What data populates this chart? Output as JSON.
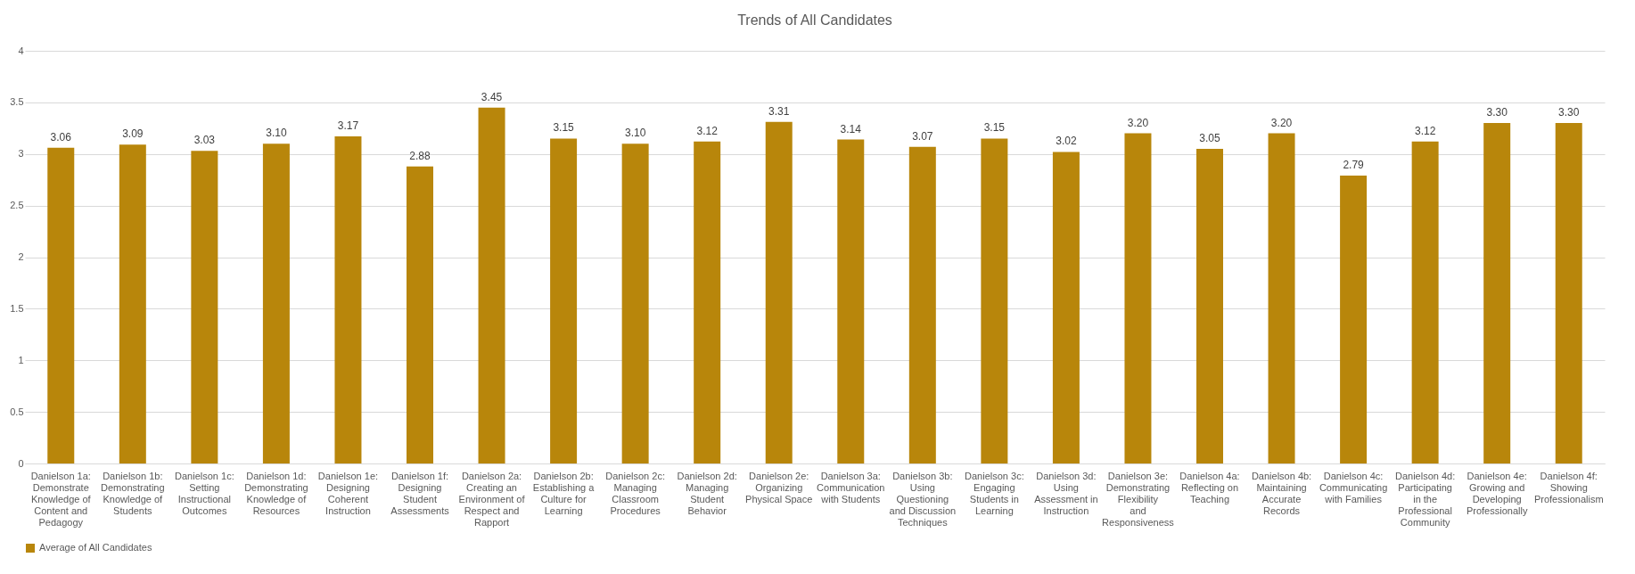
{
  "chart_data": {
    "type": "bar",
    "title": "Trends of All Candidates",
    "categories": [
      "Danielson 1a: Demonstrate Knowledge of Content and Pedagogy",
      "Danielson 1b: Demonstrating Knowledge of Students",
      "Danielson 1c: Setting Instructional Outcomes",
      "Danielson 1d: Demonstrating Knowledge of Resources",
      "Danielson 1e: Designing Coherent Instruction",
      "Danielson 1f: Designing Student Assessments",
      "Danielson 2a: Creating an Environment of Respect and Rapport",
      "Danielson 2b: Establishing a Culture for Learning",
      "Danielson 2c: Managing Classroom Procedures",
      "Danielson 2d: Managing Student Behavior",
      "Danielson 2e: Organizing Physical Space",
      "Danielson 3a: Communication with Students",
      "Danielson 3b: Using Questioning and Discussion Techniques",
      "Danielson 3c: Engaging Students in Learning",
      "Danielson 3d: Using Assessment in Instruction",
      "Danielson 3e: Demonstrating Flexibility and Responsiveness",
      "Danielson 4a: Reflecting on Teaching",
      "Danielson 4b: Maintaining Accurate Records",
      "Danielson 4c: Communicating with Families",
      "Danielson 4d: Participating in the Professional Community",
      "Danielson 4e: Growing and Developing Professionally",
      "Danielson 4f: Showing Professionalism"
    ],
    "series": [
      {
        "name": "Average of All Candidates",
        "color": "#b8860b",
        "values": [
          3.06,
          3.09,
          3.03,
          3.1,
          3.17,
          2.88,
          3.45,
          3.15,
          3.1,
          3.12,
          3.31,
          3.14,
          3.07,
          3.15,
          3.02,
          3.2,
          3.05,
          3.2,
          2.79,
          3.12,
          3.3,
          3.3
        ],
        "value_labels": [
          "3.06",
          "3.09",
          "3.03",
          "3.10",
          "3.17",
          "2.88",
          "3.45",
          "3.15",
          "3.10",
          "3.12",
          "3.31",
          "3.14",
          "3.07",
          "3.15",
          "3.02",
          "3.20",
          "3.05",
          "3.20",
          "2.79",
          "3.12",
          "3.30",
          "3.30"
        ]
      }
    ],
    "ylim": [
      0,
      4
    ],
    "yticks": [
      0,
      0.5,
      1,
      1.5,
      2,
      2.5,
      3,
      3.5,
      4
    ],
    "grid": "y",
    "legend": "bottom"
  }
}
